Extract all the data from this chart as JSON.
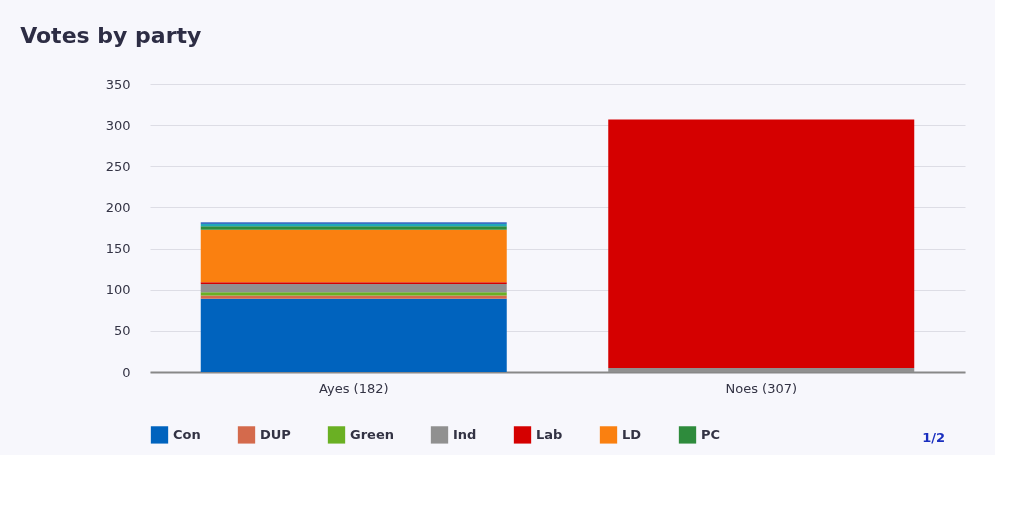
{
  "chart_data": {
    "type": "bar",
    "title": "Votes by party",
    "stacked": true,
    "categories": [
      "Ayes (182)",
      "Noes (307)"
    ],
    "series": [
      {
        "name": "Con",
        "color": "#0063be",
        "values": [
          89,
          0
        ]
      },
      {
        "name": "DUP",
        "color": "#d46a4c",
        "values": [
          4,
          0
        ]
      },
      {
        "name": "Green",
        "color": "#6ab023",
        "values": [
          4,
          0
        ]
      },
      {
        "name": "Ind",
        "color": "#909090",
        "values": [
          10,
          5
        ]
      },
      {
        "name": "Lab",
        "color": "#d50000",
        "values": [
          2,
          302
        ]
      },
      {
        "name": "LD",
        "color": "#fa8010",
        "values": [
          64,
          0
        ]
      },
      {
        "name": "PC",
        "color": "#2e8b3c",
        "values": [
          4,
          0
        ]
      },
      {
        "name": null,
        "color": "#1fa8b8",
        "values": [
          3,
          0
        ]
      },
      {
        "name": null,
        "color": "#3a6fc4",
        "values": [
          2,
          0
        ]
      }
    ],
    "ylim": [
      0,
      350
    ],
    "yticks": [
      0,
      50,
      100,
      150,
      200,
      250,
      300,
      350
    ],
    "grid": "y",
    "legend": "bottom",
    "annotations": [
      "1/2"
    ]
  }
}
